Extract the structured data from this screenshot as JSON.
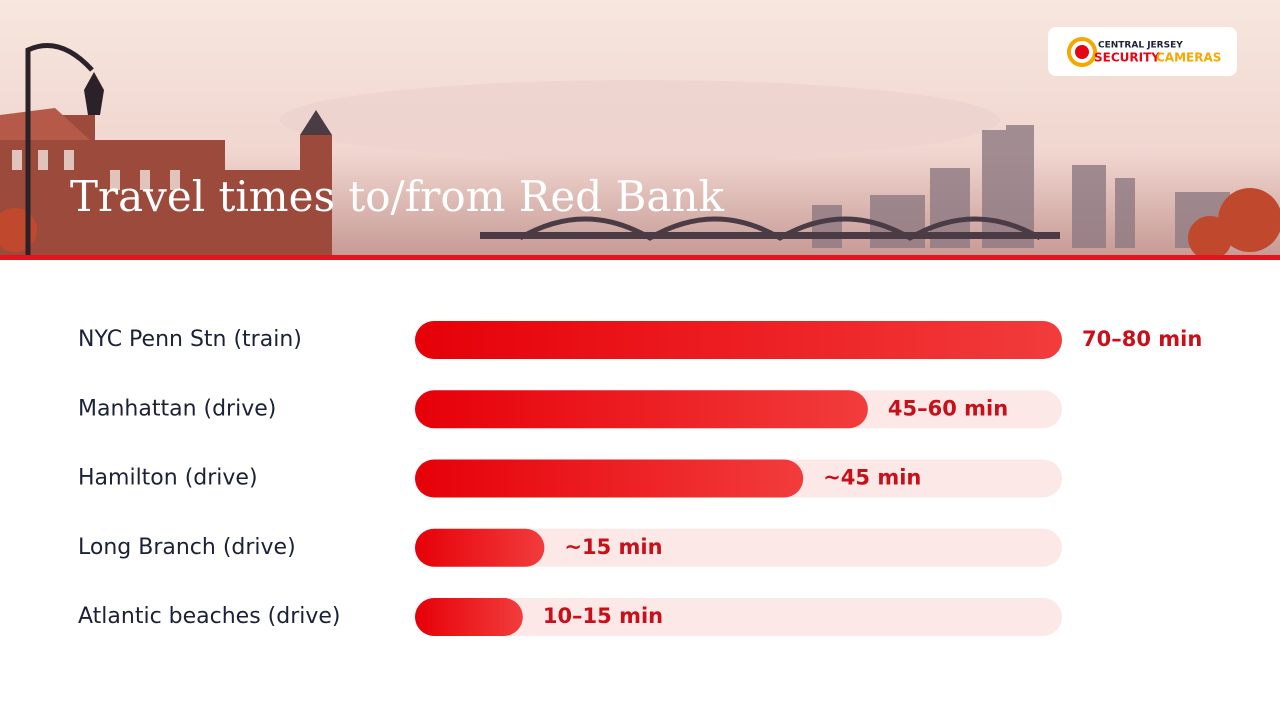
{
  "header": {
    "title": "Travel times to/from Red Bank",
    "logo": {
      "top": "CENTRAL JERSEY",
      "left": "SECURITY",
      "right": "CAMERAS"
    }
  },
  "chart_data": {
    "type": "bar",
    "orientation": "horizontal",
    "categories": [
      "NYC Penn Stn (train)",
      "Manhattan (drive)",
      "Hamilton (drive)",
      "Long Branch (drive)",
      "Atlantic beaches (drive)"
    ],
    "values": [
      75,
      52.5,
      45,
      15,
      12.5
    ],
    "value_labels": [
      "70–80 min",
      "45–60 min",
      "~45 min",
      "~15 min",
      "10–15 min"
    ],
    "xlim": [
      0,
      75
    ],
    "color": "#ee1111",
    "track_color": "#fde8e8"
  }
}
